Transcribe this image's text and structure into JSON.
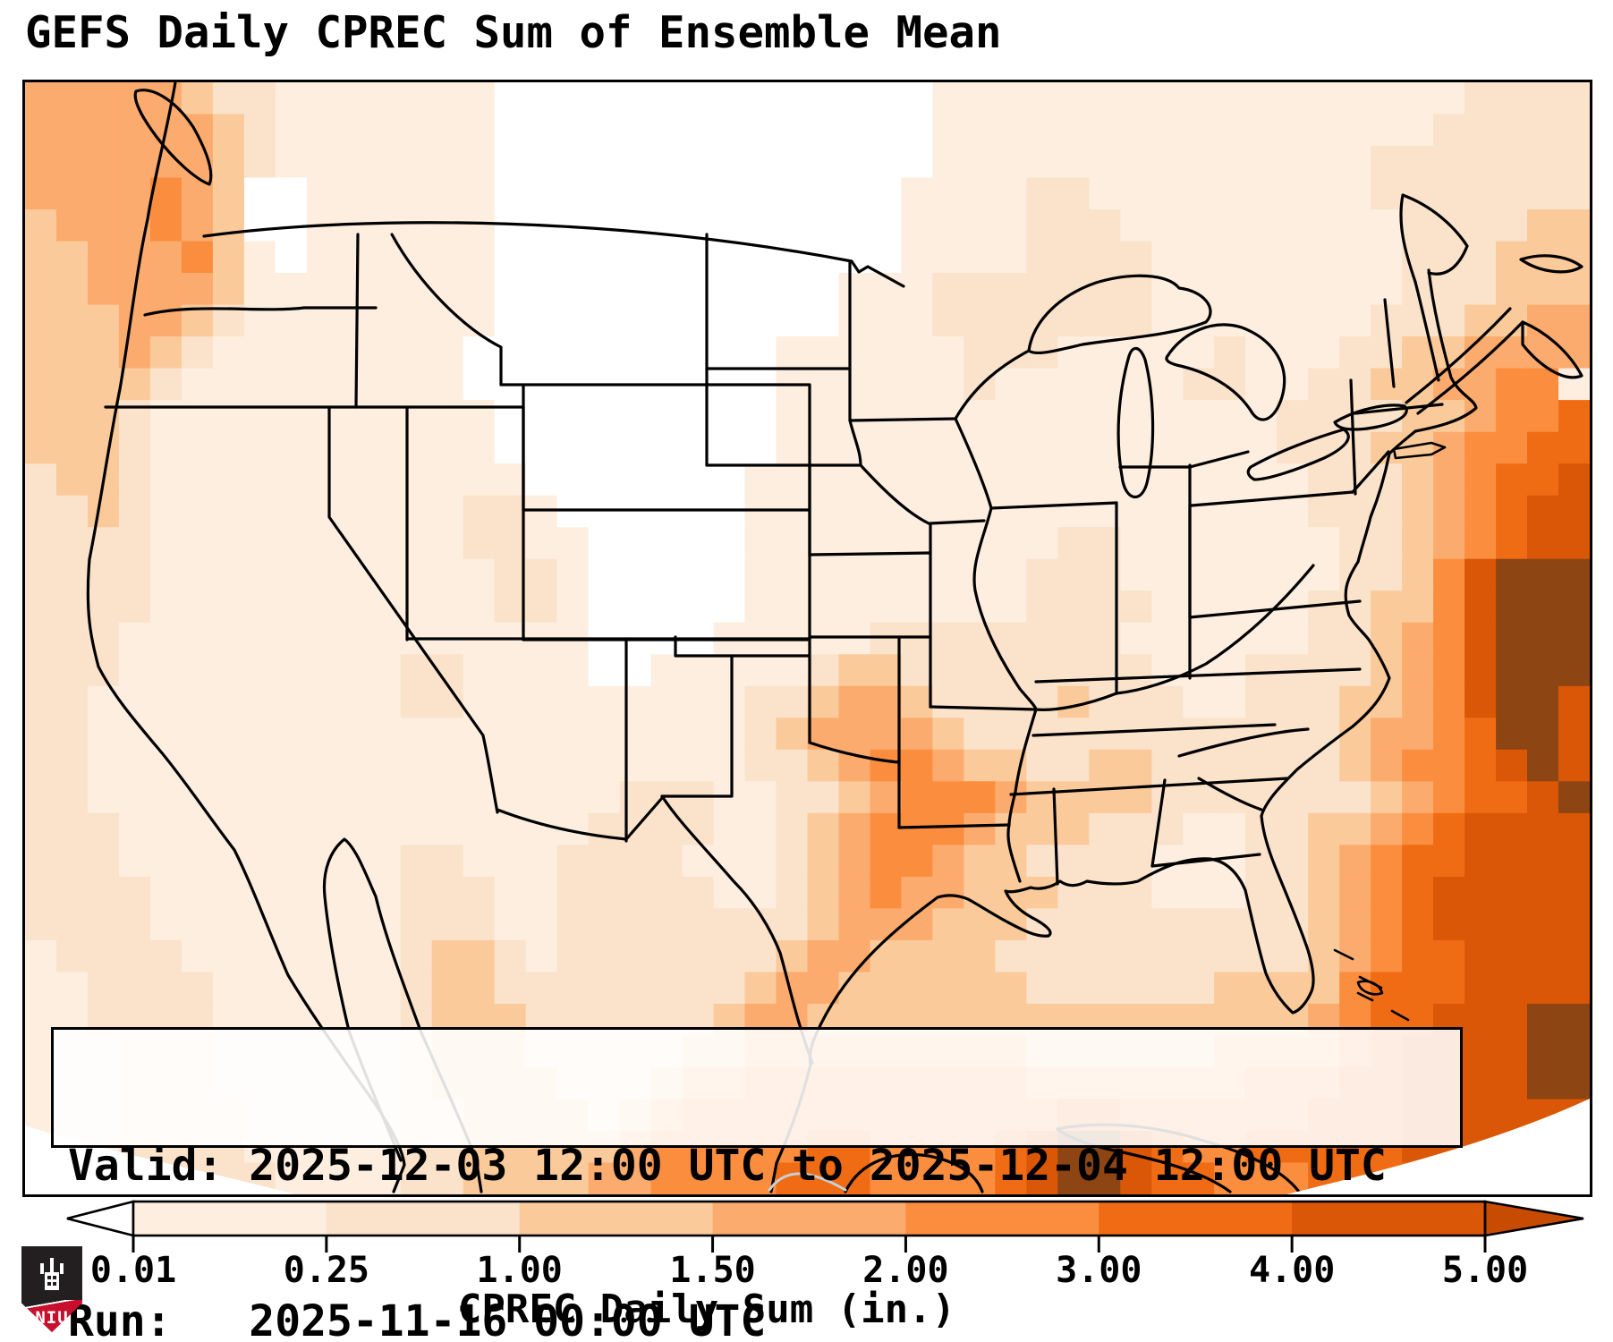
{
  "title": "GEFS Daily CPREC Sum of Ensemble Mean",
  "info_box": {
    "line1": "Valid: 2025-12-03 12:00 UTC to 2025-12-04 12:00 UTC",
    "line2": "Run:   2025-11-16 00:00 UTC"
  },
  "colorbar": {
    "label": "CPREC Daily Sum (in.)",
    "ticks": [
      "0.01",
      "0.25",
      "1.00",
      "1.50",
      "2.00",
      "3.00",
      "4.00",
      "5.00"
    ],
    "segment_colors": [
      "#fdeee0",
      "#fbe2ca",
      "#fbca9a",
      "#fcab6e",
      "#fb8d3f",
      "#ef6c15",
      "#d95706"
    ],
    "under_color": "#ffffff",
    "over_color": "#c84b02",
    "extend": "both"
  },
  "logo": {
    "text": "NIU",
    "shield_dark": "#231f20",
    "shield_red": "#c8102e"
  },
  "map": {
    "cols": 50,
    "rows": 35,
    "palette": [
      "#ffffff",
      "#fdeee0",
      "#fbe2ca",
      "#fbca9a",
      "#fcab6e",
      "#fb8d3f",
      "#ef6c15",
      "#d95706",
      "#8c4513"
    ],
    "grid_rows": [
      "44444322111111100000000000000111111111111111112222",
      "44444432111111100000000000000111111111111111122222",
      "44444432111111100000000000000111111111111112222222",
      "44445430011111100000000000001111221111111112222222",
      "34445430011111100000000000001111222111111111222233",
      "33444531011111100000000000001111222211111111222333",
      "33444431111111100000000000111222222211111111222333",
      "33344321111111100000000000111222222211111112223344",
      "33343211111111000000000011111122211111211122334444",
      "33332111111111000000000011111121111112211223344551",
      "33321111111111100000000011111111111111112222334556",
      "33321111111111100000000011111111111111112223345566",
      "23321111111111110000000111111111111111111222345667",
      "22321111111111221000000111111111111111111222345677",
      "22221111111111221100000111111111122111111122345677",
      "22221111111111122100000111111111222111111122357888",
      "22221111111111122100000111111111222211111223357888",
      "22211111111111111100001111122222222111111223457888",
      "22211111111122111100111112332222222211122223457888",
      "22111111111122111111111223443222232221122233457887",
      "22111111111111111111111234444322222222222234456887",
      "22111111111111111111111223455433223322222234556787",
      "22111111111111111112221122345554333322222223456678",
      "22211111111111111122221123455543332221122334567777",
      "22211111111122111222211123455433222211122345667777",
      "22221111111122211222221123454433322211122345677777",
      "22221111111122211222222223444333222222222345677777",
      "12222111111123321222222234433332222222222345667777",
      "11222211111123322222222344333333222222333356667777",
      "11222211111123332222223443333333333333333456677788",
      "11122211111123332222233444444444333333444456777788",
      "11122211111123333222344555555555444444455566777788",
      "11122221111122333323455555555555566555555666777777",
      "11122221111122333334555556655556788765566666777777",
      "11112222111122333344555566655556788766555666677777"
    ]
  }
}
